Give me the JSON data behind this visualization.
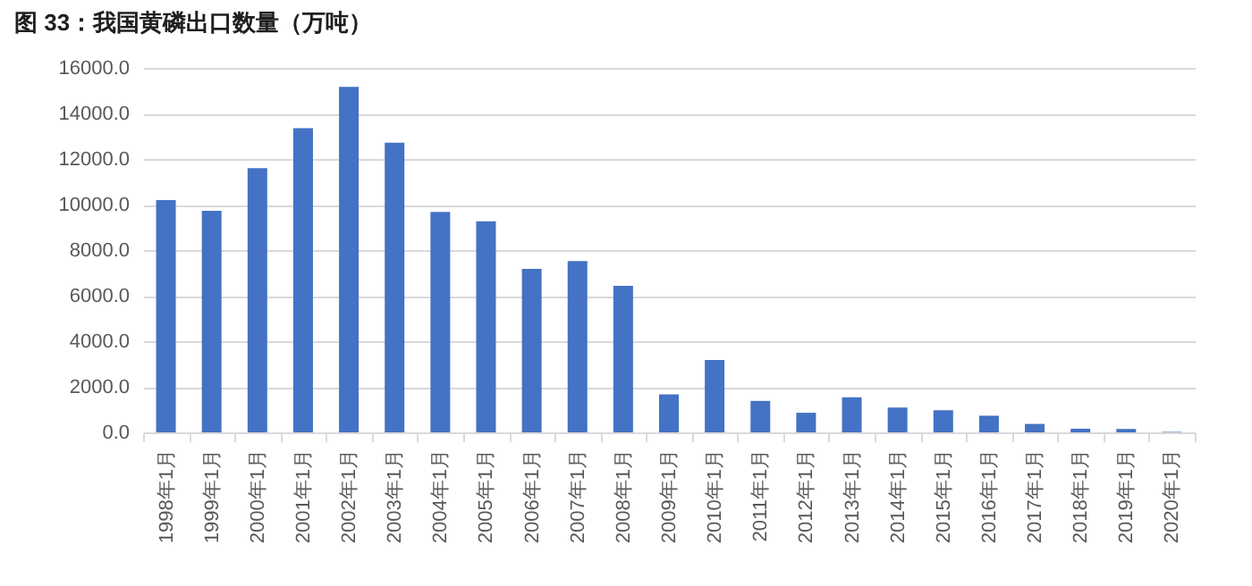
{
  "chart_data": {
    "type": "bar",
    "title": "图 33：我国黄磷出口数量（万吨）",
    "categories": [
      "1998年1月",
      "1999年1月",
      "2000年1月",
      "2001年1月",
      "2002年1月",
      "2003年1月",
      "2004年1月",
      "2005年1月",
      "2006年1月",
      "2007年1月",
      "2008年1月",
      "2009年1月",
      "2010年1月",
      "2011年1月",
      "2012年1月",
      "2013年1月",
      "2014年1月",
      "2015年1月",
      "2016年1月",
      "2017年1月",
      "2018年1月",
      "2019年1月",
      "2020年1月"
    ],
    "values": [
      10200,
      9730,
      11600,
      13350,
      15170,
      12720,
      9680,
      9260,
      7180,
      7520,
      6430,
      1670,
      3180,
      1380,
      860,
      1540,
      1090,
      970,
      730,
      370,
      160,
      150,
      20
    ],
    "color": "#4472c4",
    "ylim": [
      0,
      16000
    ],
    "yticks": [
      {
        "value": 0,
        "label": "0.0"
      },
      {
        "value": 2000,
        "label": "2000.0"
      },
      {
        "value": 4000,
        "label": "4000.0"
      },
      {
        "value": 6000,
        "label": "6000.0"
      },
      {
        "value": 8000,
        "label": "8000.0"
      },
      {
        "value": 10000,
        "label": "10000.0"
      },
      {
        "value": 12000,
        "label": "12000.0"
      },
      {
        "value": 14000,
        "label": "14000.0"
      },
      {
        "value": 16000,
        "label": "16000.0"
      }
    ],
    "grid": "y"
  }
}
